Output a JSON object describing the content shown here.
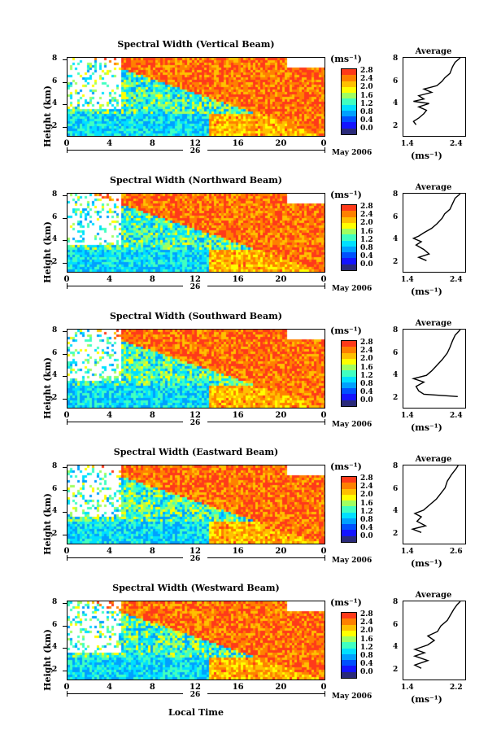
{
  "colorbar": {
    "unit": "(ms⁻¹)",
    "colors": [
      "#2a2a7a",
      "#1414ff",
      "#0050ff",
      "#00a0ff",
      "#00e0ff",
      "#40ffc0",
      "#a0ff60",
      "#ffff00",
      "#ffc000",
      "#ff8000",
      "#ff3a1a"
    ]
  },
  "panels": [
    {
      "title": "Spectral Width (Vertical Beam)",
      "ylabel": "Height (km)",
      "yticks": [
        "8",
        "6",
        "4",
        "2"
      ],
      "xticks": [
        "0",
        "4",
        "8",
        "12",
        "16",
        "20",
        "0"
      ],
      "day": "26",
      "month": "May 2006",
      "cb_labels": [
        "2.8",
        "2.4",
        "2.0",
        "1.6",
        "1.2",
        "0.8",
        "0.4",
        "0.0"
      ],
      "avg_title": "Average",
      "avg_xticks": [
        "1.4",
        "2.4"
      ],
      "avg_yticks": [
        "8",
        "6",
        "4",
        "2"
      ],
      "avg_unit": "(ms⁻¹)",
      "avg_profile": [
        [
          1.55,
          2
        ],
        [
          1.5,
          2.3
        ],
        [
          1.6,
          2.6
        ],
        [
          1.7,
          3
        ],
        [
          1.75,
          3.3
        ],
        [
          1.6,
          3.6
        ],
        [
          1.8,
          3.9
        ],
        [
          1.5,
          4.1
        ],
        [
          1.7,
          4.3
        ],
        [
          1.6,
          4.6
        ],
        [
          1.85,
          4.9
        ],
        [
          1.7,
          5.2
        ],
        [
          1.95,
          5.5
        ],
        [
          2.05,
          5.9
        ],
        [
          2.1,
          6.2
        ],
        [
          2.2,
          6.6
        ],
        [
          2.25,
          7.2
        ],
        [
          2.3,
          7.6
        ],
        [
          2.4,
          8
        ]
      ]
    },
    {
      "title": "Spectral Width (Northward Beam)",
      "ylabel": "Height (km)",
      "yticks": [
        "8",
        "6",
        "4",
        "2"
      ],
      "xticks": [
        "0",
        "4",
        "8",
        "12",
        "16",
        "20",
        "0"
      ],
      "day": "26",
      "month": "May 2006",
      "cb_labels": [
        "2.8",
        "2.4",
        "2.0",
        "1.6",
        "1.2",
        "0.8",
        "0.4",
        "0.0"
      ],
      "avg_title": "Average",
      "avg_xticks": [
        "1.4",
        "2.4"
      ],
      "avg_yticks": [
        "8",
        "6",
        "4",
        "2"
      ],
      "avg_unit": "(ms⁻¹)",
      "avg_profile": [
        [
          1.75,
          2
        ],
        [
          1.6,
          2.3
        ],
        [
          1.8,
          2.6
        ],
        [
          1.7,
          3
        ],
        [
          1.55,
          3.4
        ],
        [
          1.65,
          3.7
        ],
        [
          1.5,
          4
        ],
        [
          1.6,
          4.2
        ],
        [
          1.7,
          4.5
        ],
        [
          1.85,
          4.9
        ],
        [
          1.95,
          5.3
        ],
        [
          2.05,
          5.8
        ],
        [
          2.1,
          6.2
        ],
        [
          2.2,
          6.6
        ],
        [
          2.25,
          7.1
        ],
        [
          2.3,
          7.6
        ],
        [
          2.4,
          8
        ]
      ]
    },
    {
      "title": "Spectral Width (Southward Beam)",
      "ylabel": "Height (km)",
      "yticks": [
        "8",
        "6",
        "4",
        "2"
      ],
      "xticks": [
        "0",
        "4",
        "8",
        "12",
        "16",
        "20",
        "0"
      ],
      "day": "26",
      "month": "May 2006",
      "cb_labels": [
        "2.8",
        "2.4",
        "2.0",
        "1.6",
        "1.2",
        "0.8",
        "0.4",
        "0.0"
      ],
      "avg_title": "Average",
      "avg_xticks": [
        "1.4",
        "2.4"
      ],
      "avg_yticks": [
        "8",
        "6",
        "4",
        "2"
      ],
      "avg_unit": "(ms⁻¹)",
      "avg_profile": [
        [
          2.35,
          2
        ],
        [
          1.7,
          2.2
        ],
        [
          1.6,
          2.5
        ],
        [
          1.55,
          2.9
        ],
        [
          1.7,
          3.3
        ],
        [
          1.5,
          3.6
        ],
        [
          1.75,
          3.9
        ],
        [
          1.85,
          4.3
        ],
        [
          1.95,
          4.8
        ],
        [
          2.05,
          5.3
        ],
        [
          2.15,
          5.9
        ],
        [
          2.2,
          6.4
        ],
        [
          2.25,
          7
        ],
        [
          2.3,
          7.5
        ],
        [
          2.4,
          8
        ]
      ]
    },
    {
      "title": "Spectral Width (Eastward Beam)",
      "ylabel": "Height (km)",
      "yticks": [
        "8",
        "6",
        "4",
        "2"
      ],
      "xticks": [
        "0",
        "4",
        "8",
        "12",
        "16",
        "20",
        "0"
      ],
      "day": "26",
      "month": "May 2006",
      "cb_labels": [
        "2.8",
        "2.4",
        "2.0",
        "1.6",
        "1.2",
        "0.8",
        "0.4",
        "0.0"
      ],
      "avg_title": "Average",
      "avg_xticks": [
        "1.4",
        "2.6"
      ],
      "avg_yticks": [
        "8",
        "6",
        "4",
        "2"
      ],
      "avg_unit": "(ms⁻¹)",
      "avg_profile": [
        [
          1.7,
          2
        ],
        [
          1.5,
          2.3
        ],
        [
          1.8,
          2.6
        ],
        [
          1.6,
          3
        ],
        [
          1.7,
          3.4
        ],
        [
          1.55,
          3.7
        ],
        [
          1.75,
          4
        ],
        [
          1.9,
          4.5
        ],
        [
          2.05,
          5
        ],
        [
          2.15,
          5.5
        ],
        [
          2.25,
          6
        ],
        [
          2.3,
          6.6
        ],
        [
          2.4,
          7.2
        ],
        [
          2.5,
          7.7
        ],
        [
          2.55,
          8
        ]
      ]
    },
    {
      "title": "Spectral Width (Westward Beam)",
      "ylabel": "Height (km)",
      "yticks": [
        "8",
        "6",
        "4",
        "2"
      ],
      "xticks": [
        "0",
        "4",
        "8",
        "12",
        "16",
        "20",
        "0"
      ],
      "day": "26",
      "month": "May 2006",
      "cb_labels": [
        "2.8",
        "2.4",
        "2.0",
        "1.6",
        "1.2",
        "0.8",
        "0.4",
        "0.0"
      ],
      "avg_title": "Average",
      "avg_xticks": [
        "1.4",
        "2.2"
      ],
      "avg_yticks": [
        "8",
        "6",
        "4",
        "2"
      ],
      "avg_unit": "(ms⁻¹)",
      "avg_profile": [
        [
          1.6,
          2
        ],
        [
          1.5,
          2.3
        ],
        [
          1.7,
          2.7
        ],
        [
          1.5,
          3.1
        ],
        [
          1.65,
          3.4
        ],
        [
          1.5,
          3.7
        ],
        [
          1.7,
          4.1
        ],
        [
          1.8,
          4.5
        ],
        [
          1.7,
          4.9
        ],
        [
          1.85,
          5.3
        ],
        [
          1.9,
          5.8
        ],
        [
          2.0,
          6.3
        ],
        [
          2.05,
          6.8
        ],
        [
          2.1,
          7.3
        ],
        [
          2.15,
          7.7
        ],
        [
          2.2,
          8
        ]
      ]
    }
  ],
  "xlabel": "Local Time",
  "chart_data": [
    {
      "type": "heatmap",
      "title": "Spectral Width (Vertical Beam)",
      "ylabel": "Height (km)",
      "xlabel": "Local Time",
      "xlim": [
        0,
        24
      ],
      "ylim": [
        1,
        8
      ],
      "colorbar_range": [
        0.0,
        2.8
      ]
    },
    {
      "type": "heatmap",
      "title": "Spectral Width (Northward Beam)",
      "ylabel": "Height (km)",
      "xlim": [
        0,
        24
      ],
      "ylim": [
        1,
        8
      ],
      "colorbar_range": [
        0.0,
        2.8
      ]
    },
    {
      "type": "heatmap",
      "title": "Spectral Width (Southward Beam)",
      "ylabel": "Height (km)",
      "xlim": [
        0,
        24
      ],
      "ylim": [
        1,
        8
      ],
      "colorbar_range": [
        0.0,
        2.8
      ]
    },
    {
      "type": "heatmap",
      "title": "Spectral Width (Eastward Beam)",
      "ylabel": "Height (km)",
      "xlim": [
        0,
        24
      ],
      "ylim": [
        1,
        8
      ],
      "colorbar_range": [
        0.0,
        2.8
      ]
    },
    {
      "type": "heatmap",
      "title": "Spectral Width (Westward Beam)",
      "ylabel": "Height (km)",
      "xlim": [
        0,
        24
      ],
      "ylim": [
        1,
        8
      ],
      "colorbar_range": [
        0.0,
        2.8
      ]
    }
  ]
}
